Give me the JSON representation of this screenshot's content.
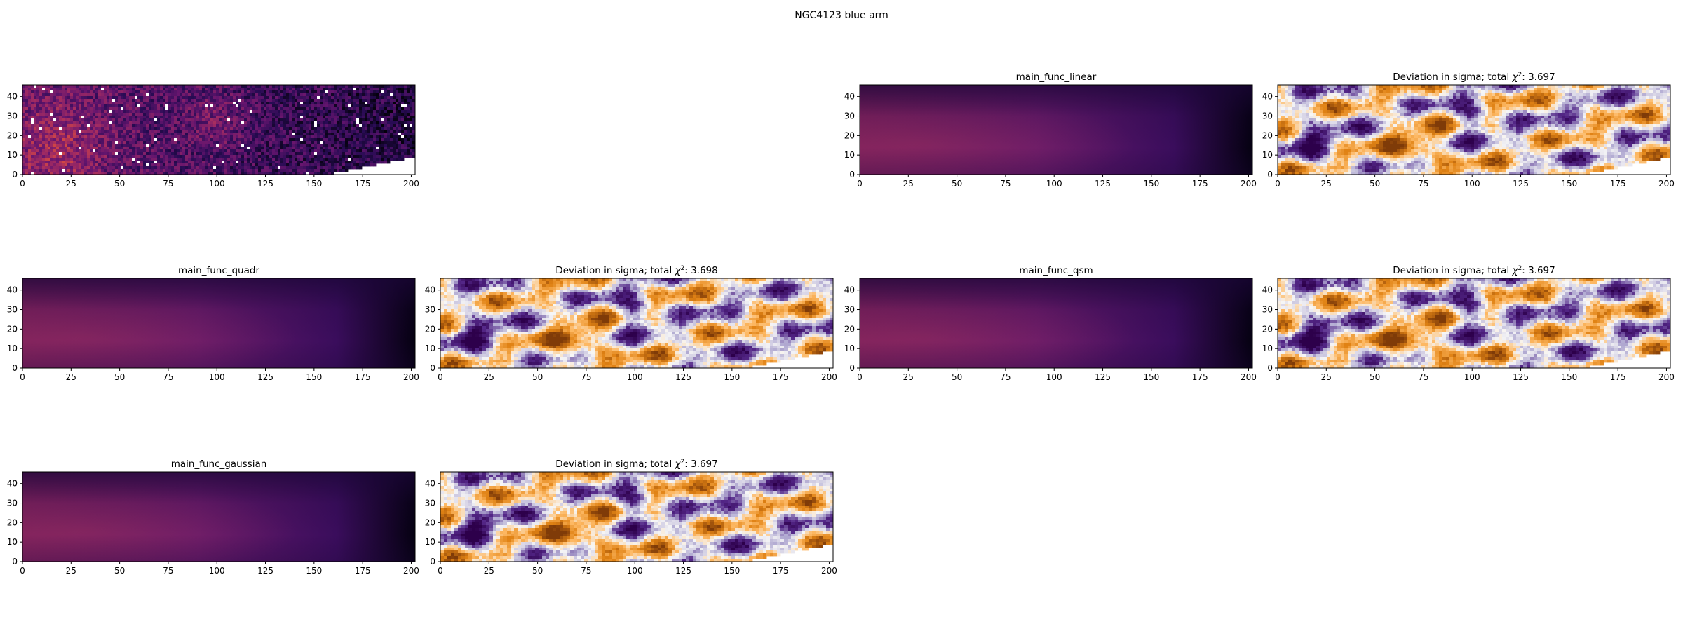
{
  "figure": {
    "suptitle": "NGC4123 blue arm"
  },
  "colors": {
    "inferno_dark": "#000004",
    "inferno_mid": "#781c6d",
    "deviation_neg": "#3b0f70",
    "deviation_pos": "#b35806"
  },
  "chart_data": [
    {
      "id": "data",
      "type": "heatmap",
      "row": 0,
      "col": 0,
      "title": "",
      "colormap": "inferno",
      "masked_color": "white",
      "xlim": [
        0,
        202
      ],
      "ylim": [
        0,
        46
      ],
      "xticks": [
        0,
        25,
        50,
        75,
        100,
        125,
        150,
        175,
        200
      ],
      "yticks": [
        0,
        10,
        20,
        30,
        40
      ]
    },
    {
      "id": "linear-model",
      "type": "heatmap",
      "row": 0,
      "col": 2,
      "title": "main_func_linear",
      "colormap": "inferno",
      "xlim": [
        0,
        202
      ],
      "ylim": [
        0,
        46
      ],
      "xticks": [
        0,
        25,
        50,
        75,
        100,
        125,
        150,
        175,
        200
      ],
      "yticks": [
        0,
        10,
        20,
        30,
        40
      ]
    },
    {
      "id": "linear-deviation",
      "type": "heatmap",
      "row": 0,
      "col": 3,
      "title_prefix": "Deviation in sigma; total ",
      "chi_symbol": "χ",
      "chi_exp": "2",
      "chi2": "3.697",
      "colormap": "PuOr",
      "xlim": [
        0,
        202
      ],
      "ylim": [
        0,
        46
      ],
      "xticks": [
        0,
        25,
        50,
        75,
        100,
        125,
        150,
        175,
        200
      ],
      "yticks": [
        0,
        10,
        20,
        30,
        40
      ]
    },
    {
      "id": "quadr-model",
      "type": "heatmap",
      "row": 1,
      "col": 0,
      "title": "main_func_quadr",
      "colormap": "inferno",
      "xlim": [
        0,
        202
      ],
      "ylim": [
        0,
        46
      ],
      "xticks": [
        0,
        25,
        50,
        75,
        100,
        125,
        150,
        175,
        200
      ],
      "yticks": [
        0,
        10,
        20,
        30,
        40
      ]
    },
    {
      "id": "quadr-deviation",
      "type": "heatmap",
      "row": 1,
      "col": 1,
      "title_prefix": "Deviation in sigma; total ",
      "chi_symbol": "χ",
      "chi_exp": "2",
      "chi2": "3.698",
      "colormap": "PuOr",
      "xlim": [
        0,
        202
      ],
      "ylim": [
        0,
        46
      ],
      "xticks": [
        0,
        25,
        50,
        75,
        100,
        125,
        150,
        175,
        200
      ],
      "yticks": [
        0,
        10,
        20,
        30,
        40
      ]
    },
    {
      "id": "qsm-model",
      "type": "heatmap",
      "row": 1,
      "col": 2,
      "title": "main_func_qsm",
      "colormap": "inferno",
      "xlim": [
        0,
        202
      ],
      "ylim": [
        0,
        46
      ],
      "xticks": [
        0,
        25,
        50,
        75,
        100,
        125,
        150,
        175,
        200
      ],
      "yticks": [
        0,
        10,
        20,
        30,
        40
      ]
    },
    {
      "id": "qsm-deviation",
      "type": "heatmap",
      "row": 1,
      "col": 3,
      "title_prefix": "Deviation in sigma; total ",
      "chi_symbol": "χ",
      "chi_exp": "2",
      "chi2": "3.697",
      "colormap": "PuOr",
      "xlim": [
        0,
        202
      ],
      "ylim": [
        0,
        46
      ],
      "xticks": [
        0,
        25,
        50,
        75,
        100,
        125,
        150,
        175,
        200
      ],
      "yticks": [
        0,
        10,
        20,
        30,
        40
      ]
    },
    {
      "id": "gaussian-model",
      "type": "heatmap",
      "row": 2,
      "col": 0,
      "title": "main_func_gaussian",
      "colormap": "inferno",
      "xlim": [
        0,
        202
      ],
      "ylim": [
        0,
        46
      ],
      "xticks": [
        0,
        25,
        50,
        75,
        100,
        125,
        150,
        175,
        200
      ],
      "yticks": [
        0,
        10,
        20,
        30,
        40
      ]
    },
    {
      "id": "gaussian-deviation",
      "type": "heatmap",
      "row": 2,
      "col": 1,
      "title_prefix": "Deviation in sigma; total ",
      "chi_symbol": "χ",
      "chi_exp": "2",
      "chi2": "3.697",
      "colormap": "PuOr",
      "xlim": [
        0,
        202
      ],
      "ylim": [
        0,
        46
      ],
      "xticks": [
        0,
        25,
        50,
        75,
        100,
        125,
        150,
        175,
        200
      ],
      "yticks": [
        0,
        10,
        20,
        30,
        40
      ]
    }
  ]
}
